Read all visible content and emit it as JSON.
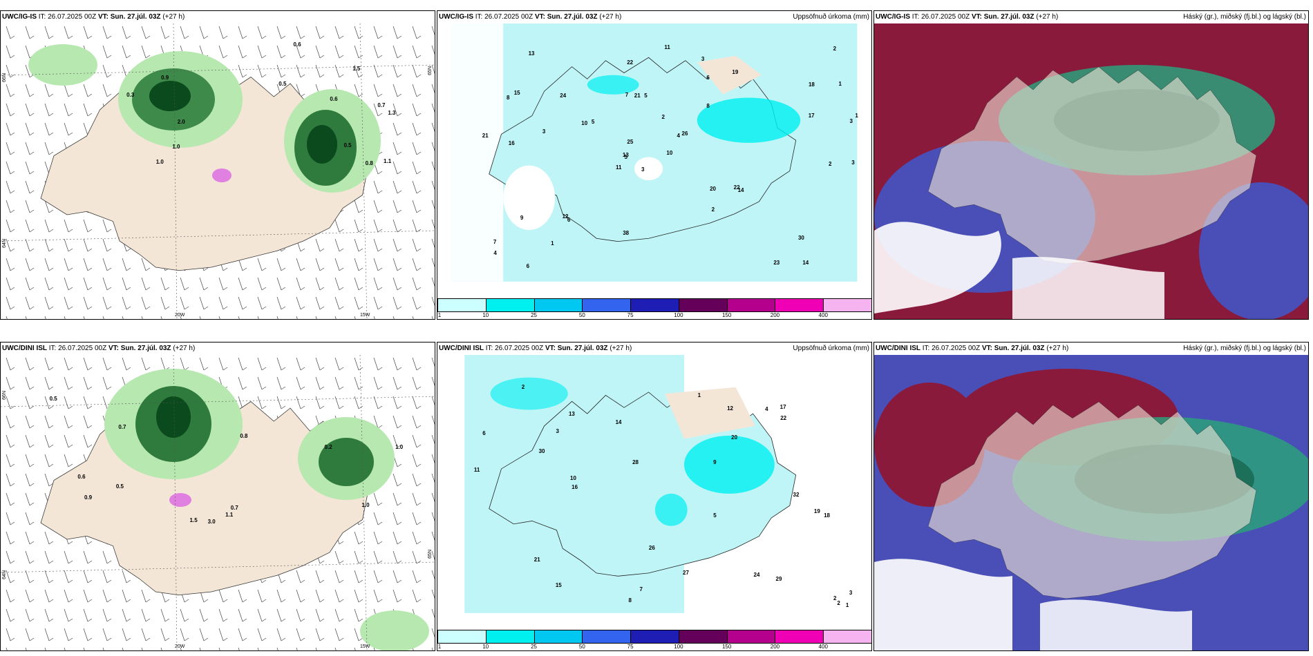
{
  "rows": [
    {
      "model": "UWC/IG-IS",
      "it_label": "IT: 26.07.2025 00Z",
      "vt_label": "VT: Sun. 27.júl. 03Z",
      "lead": "(+27 h)",
      "lat_labels": [
        "66N",
        "64N",
        "65N"
      ],
      "lon_labels": [
        "20W",
        "15W"
      ],
      "precip_values": [
        "3",
        "8",
        "5",
        "7",
        "4",
        "6",
        "3",
        "5",
        "6",
        "10",
        "13",
        "14",
        "16",
        "18",
        "11",
        "8",
        "6",
        "7",
        "2",
        "9",
        "5",
        "4",
        "1",
        "21",
        "26",
        "14",
        "15",
        "22",
        "21",
        "20",
        "17",
        "13",
        "38",
        "25",
        "24",
        "19",
        "12",
        "23",
        "30",
        "22",
        "11",
        "10",
        "3",
        "2"
      ],
      "precip_values_right": [
        "3",
        "1",
        "2",
        "2",
        "1",
        "3"
      ],
      "cloud_values": [
        "0.9",
        "0.7",
        "0.5",
        "1.3",
        "2.0",
        "1.1",
        "1.0",
        "0.6",
        "0.8",
        "1.5",
        "0.3",
        "0.5",
        "0.6",
        "1.0"
      ]
    },
    {
      "model": "UWC/DINI ISL",
      "it_label": "IT: 26.07.2025 00Z",
      "vt_label": "VT: Sun. 27.júl. 03Z",
      "lead": "(+27 h)",
      "lat_labels": [
        "66N",
        "64N",
        "65N"
      ],
      "lon_labels": [
        "20W",
        "15W"
      ],
      "precip_values": [
        "6",
        "3",
        "9",
        "7",
        "4",
        "8",
        "5",
        "16",
        "17",
        "18",
        "19",
        "13",
        "20",
        "21",
        "11",
        "15",
        "10",
        "14",
        "29",
        "27",
        "24",
        "32",
        "28",
        "26",
        "12",
        "30",
        "22",
        "1",
        "2"
      ],
      "precip_values_right": [
        "2",
        "1",
        "2",
        "3"
      ],
      "cloud_values": [
        "1.5",
        "0.7",
        "0.8",
        "0.5",
        "1.0",
        "0.9",
        "1.1",
        "0.6",
        "0.2",
        "0.7",
        "0.5",
        "1.0",
        "3.0"
      ]
    }
  ],
  "precip_title": "Uppsöfnuð úrkoma (mm)",
  "cloud_title": "Hásk​ý (gr.), miðsk​ý (fj.bl.) og lágsk​ý (bl.)",
  "colorbar": {
    "labels": [
      "1",
      "10",
      "25",
      "50",
      "75",
      "100",
      "150",
      "200",
      "400"
    ],
    "colors": [
      "#ccffff",
      "#00f0f0",
      "#00c8f0",
      "#3264f0",
      "#1e1eb4",
      "#64005a",
      "#b4008c",
      "#f000b4",
      "#f5b4f0"
    ]
  },
  "colors": {
    "land": "#f3e6d7",
    "sea_precip": "#bff5f7",
    "green_light": "#b6e8b0",
    "green_dark": "#0b4a1c",
    "maroon": "#8a1a3c",
    "navy": "#4a4fb8",
    "teal": "#2aa07a"
  }
}
